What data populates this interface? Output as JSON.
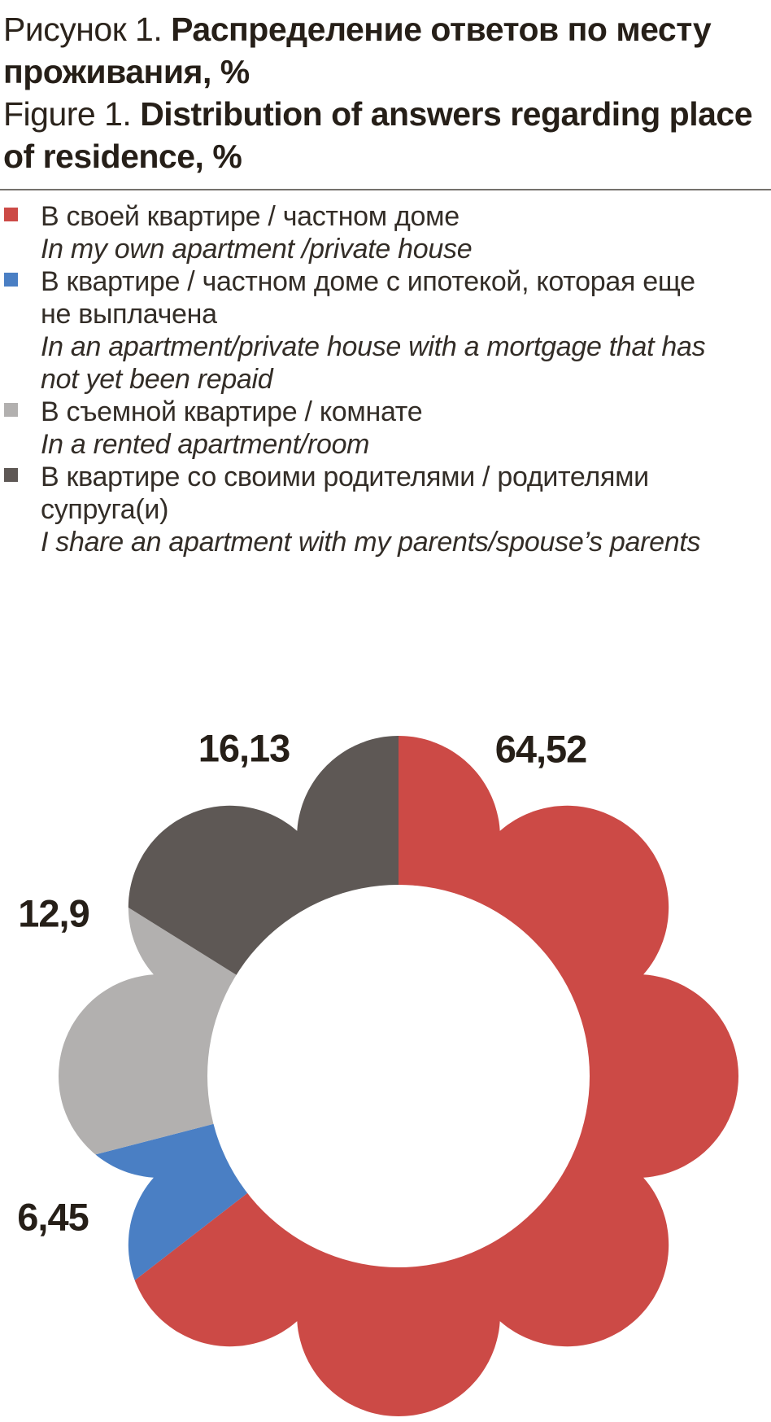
{
  "figure": {
    "title_ru_prefix": "Рисунок 1. ",
    "title_ru_bold": "Распределение ответов по месту\nпроживания, %",
    "title_en_prefix": "Figure 1. ",
    "title_en_bold": "Distribution of answers regarding place\nof residence, %"
  },
  "chart_data": {
    "type": "pie",
    "variant": "flower-donut",
    "title_ru": "Рисунок 1. Распределение ответов по месту проживания, %",
    "title_en": "Figure 1. Distribution of answers regarding place of residence, %",
    "unit": "%",
    "start_angle_deg": 0,
    "direction": "clockwise",
    "petals": 8,
    "legend_position": "top",
    "categories": [
      {
        "ru": "В своей квартире / частном доме",
        "en": "In my own apartment /private house"
      },
      {
        "ru": "В квартире / частном доме с ипотекой, которая еще\nне выплачена",
        "en": "In an apartment/private house with a mortgage that has\nnot yet been repaid"
      },
      {
        "ru": "В съемной квартире / комнате",
        "en": "In a rented apartment/room"
      },
      {
        "ru": "В квартире со своими родителями / родителями\nсупруга(и)",
        "en": "I share an apartment with my parents/spouse’s parents"
      }
    ],
    "values": [
      64.52,
      6.45,
      12.9,
      16.13
    ],
    "value_labels": [
      "64,52",
      "6,45",
      "12,9",
      "16,13"
    ],
    "colors": [
      "#cc4a46",
      "#4a7fc4",
      "#b2b0af",
      "#5e5855"
    ]
  }
}
